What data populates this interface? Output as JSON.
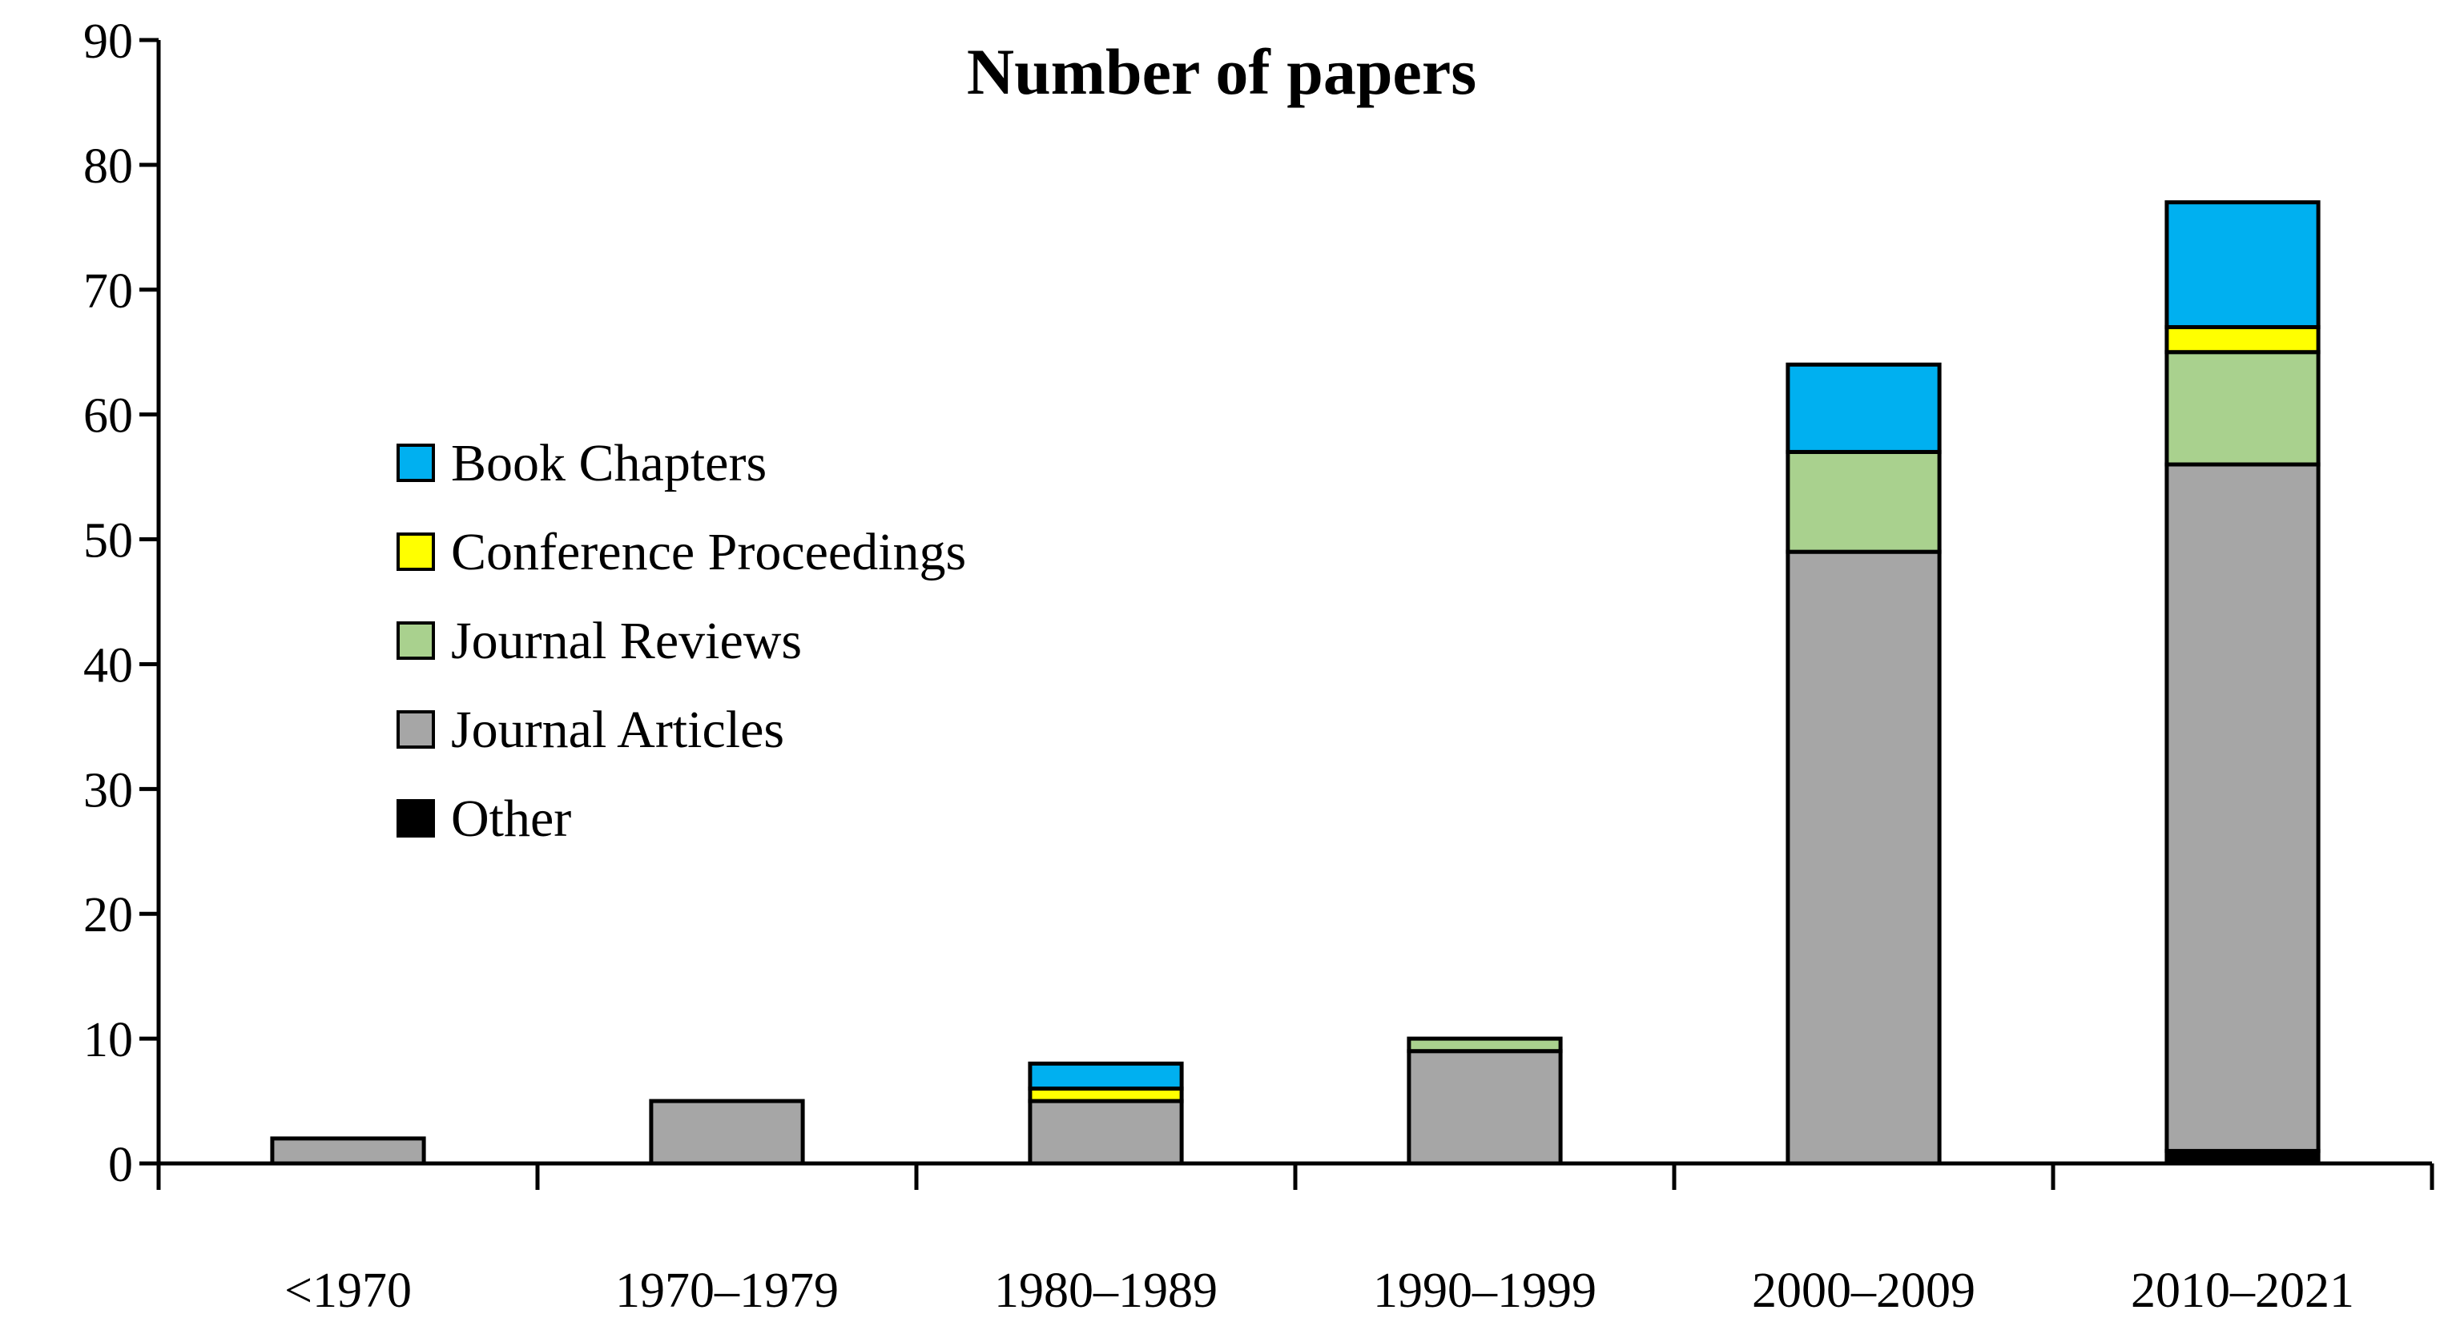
{
  "chart_data": {
    "type": "bar",
    "stacked": true,
    "title": "Number of papers",
    "xlabel": "",
    "ylabel": "",
    "ylim": [
      0,
      90
    ],
    "yticks": [
      "0",
      "10",
      "20",
      "30",
      "40",
      "50",
      "60",
      "70",
      "80",
      "90"
    ],
    "categories": [
      "<1970",
      "1970–1979",
      "1980–1989",
      "1990–1999",
      "2000–2009",
      "2010–2021"
    ],
    "series": [
      {
        "name": "Other",
        "color": "#000000",
        "values": [
          0,
          0,
          0,
          0,
          0,
          1
        ]
      },
      {
        "name": "Journal Articles",
        "color": "#a6a6a6",
        "values": [
          2,
          5,
          5,
          9,
          49,
          55
        ]
      },
      {
        "name": "Journal Reviews",
        "color": "#a9d18e",
        "values": [
          0,
          0,
          0,
          1,
          8,
          9
        ]
      },
      {
        "name": "Conference Proceedings",
        "color": "#ffff00",
        "values": [
          0,
          0,
          1,
          0,
          0,
          2
        ]
      },
      {
        "name": "Book Chapters",
        "color": "#00b0f0",
        "values": [
          0,
          0,
          2,
          0,
          7,
          10
        ]
      }
    ],
    "legend": {
      "position": "upper-left",
      "order": [
        "Book Chapters",
        "Conference Proceedings",
        "Journal Reviews",
        "Journal Articles",
        "Other"
      ]
    },
    "grid": false
  }
}
